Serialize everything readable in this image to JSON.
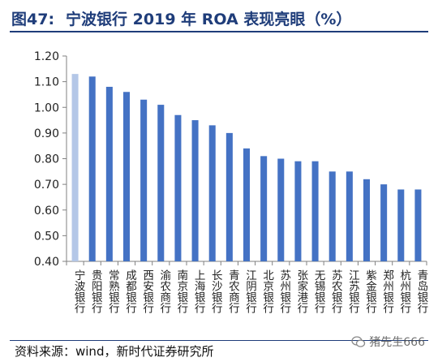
{
  "header": {
    "figure_label": "图47:",
    "title": "宁波银行 2019 年 ROA 表现亮眼（%）"
  },
  "footer": {
    "source": "资料来源：wind，新时代证券研究所",
    "watermark": "猪先生666"
  },
  "colors": {
    "title": "#1f3d7a",
    "bar": "#4472c4",
    "bar_highlight": "#b4c7e7",
    "axis": "#808080"
  },
  "chart_data": {
    "type": "bar",
    "categories": [
      "宁波银行",
      "贵阳银行",
      "常熟银行",
      "成都银行",
      "西安银行",
      "渝农商行",
      "南京银行",
      "上海银行",
      "长沙银行",
      "青农商行",
      "江阴银行",
      "北京银行",
      "苏州银行",
      "张家港行",
      "无锡银行",
      "苏农银行",
      "江苏银行",
      "紫金银行",
      "郑州银行",
      "杭州银行",
      "青岛银行"
    ],
    "values": [
      1.13,
      1.12,
      1.08,
      1.06,
      1.03,
      1.01,
      0.97,
      0.95,
      0.93,
      0.9,
      0.84,
      0.81,
      0.8,
      0.79,
      0.79,
      0.75,
      0.75,
      0.72,
      0.7,
      0.68,
      0.68
    ],
    "highlight_index": 0,
    "ylim": [
      0.4,
      1.2
    ],
    "yticks": [
      "0.40",
      "0.50",
      "0.60",
      "0.70",
      "0.80",
      "0.90",
      "1.00",
      "1.10",
      "1.20"
    ],
    "grid": false,
    "legend": "none"
  }
}
